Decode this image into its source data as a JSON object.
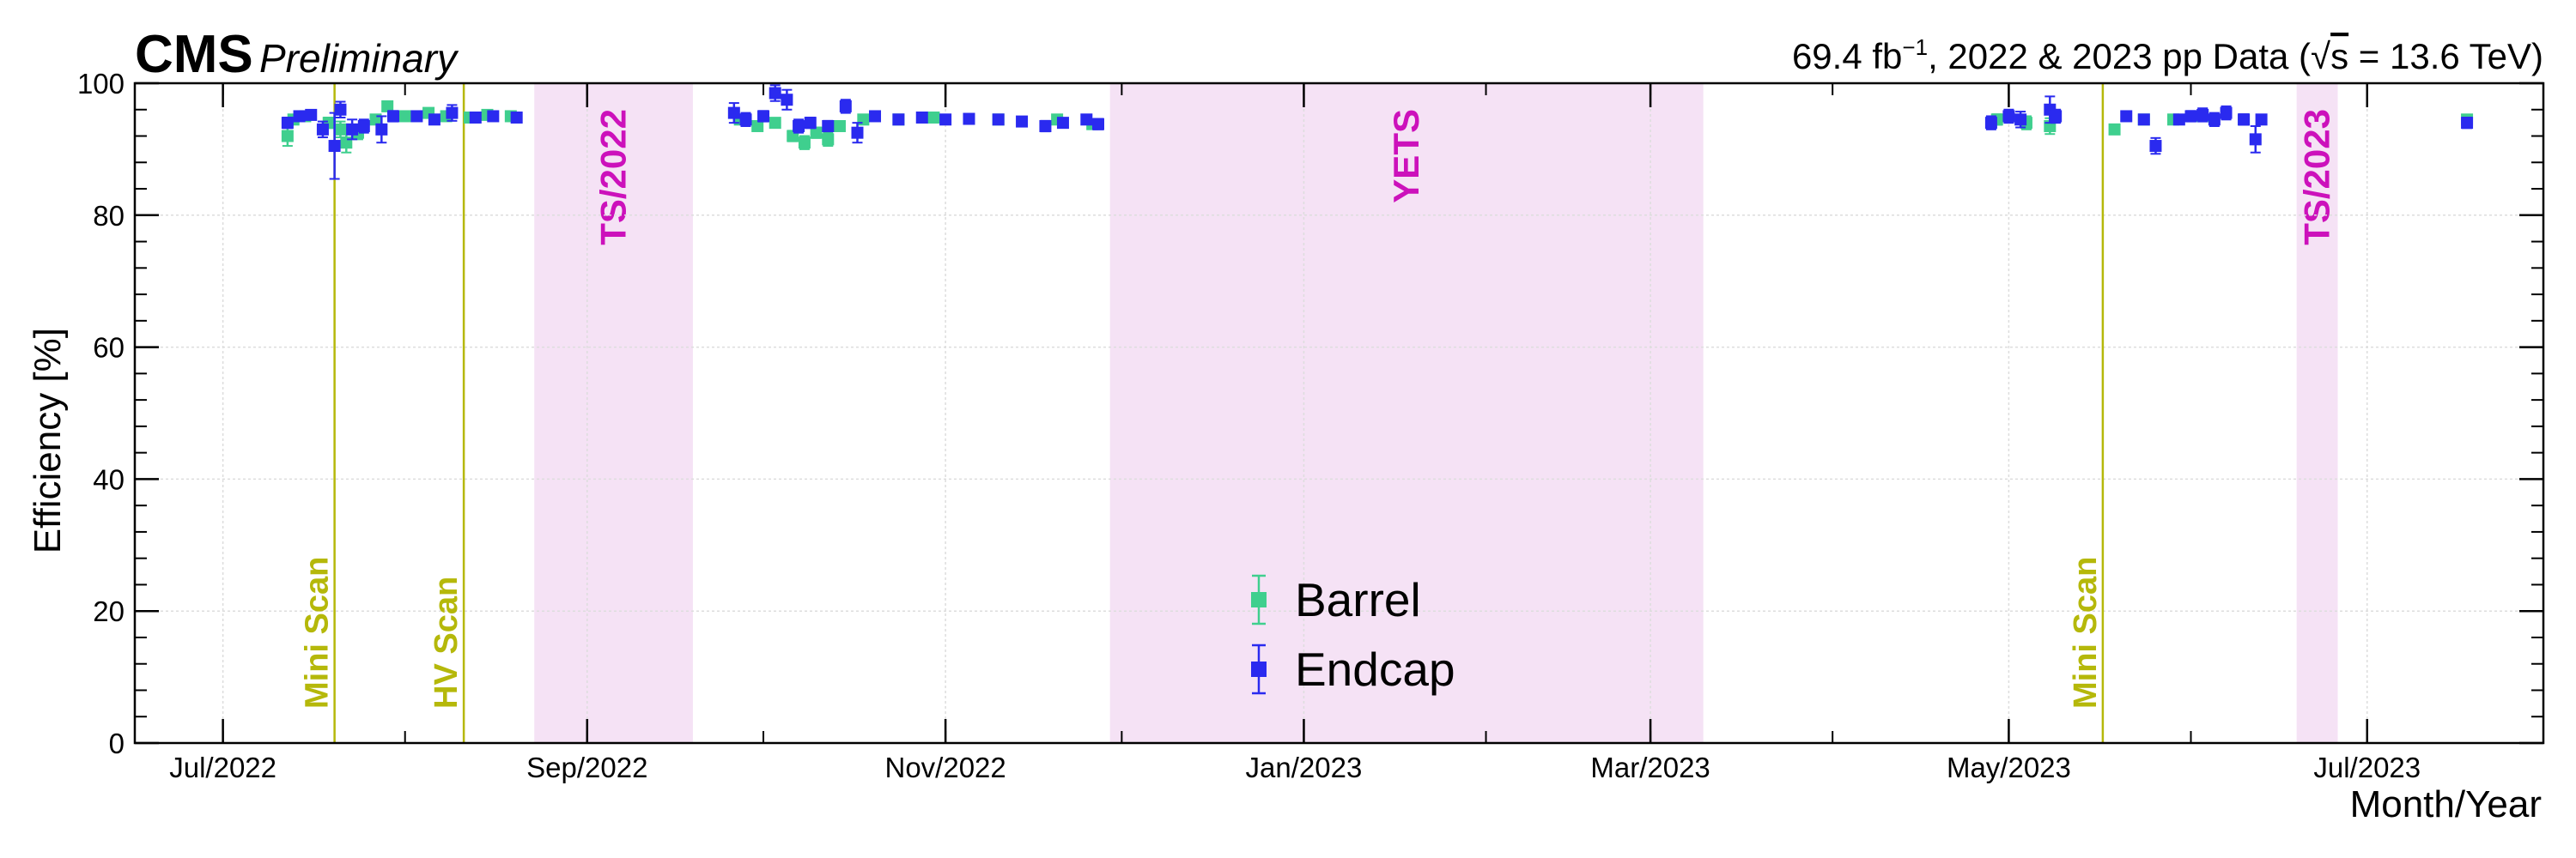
{
  "header": {
    "experiment": "CMS",
    "status": "Preliminary",
    "lumi_value": "69.4 fb",
    "lumi_exp": "−1",
    "lumi_rest": ", 2022 & 2023 pp Data (",
    "sqrt": "√",
    "energy_var": "s",
    "energy_value": " = 13.6 TeV)"
  },
  "chart_data": {
    "type": "scatter",
    "xlabel": "Month/Year",
    "ylabel": "Efficiency [%]",
    "xlim": [
      "2022-06-16",
      "2023-07-31"
    ],
    "ylim": [
      0,
      100
    ],
    "yticks": [
      0,
      20,
      40,
      60,
      80,
      100
    ],
    "xticks": [
      {
        "date": "2022-07-01",
        "label": "Jul/2022"
      },
      {
        "date": "2022-09-01",
        "label": "Sep/2022"
      },
      {
        "date": "2022-11-01",
        "label": "Nov/2022"
      },
      {
        "date": "2023-01-01",
        "label": "Jan/2023"
      },
      {
        "date": "2023-03-01",
        "label": "Mar/2023"
      },
      {
        "date": "2023-05-01",
        "label": "May/2023"
      },
      {
        "date": "2023-07-01",
        "label": "Jul/2023"
      }
    ],
    "grid": true,
    "legend_position": "bottom-center",
    "colors": {
      "barrel": "#3fcf8e",
      "endcap": "#2a2aef",
      "band": "#f5e2f5",
      "band_text": "#cc11bb",
      "scan": "#b5b80a"
    },
    "shaded_bands": [
      {
        "label": "TS/2022",
        "start": "2022-08-23",
        "end": "2022-09-19"
      },
      {
        "label": "YETS",
        "start": "2022-11-29",
        "end": "2023-03-10"
      },
      {
        "label": "TS/2023",
        "start": "2023-06-19",
        "end": "2023-06-26"
      }
    ],
    "scan_lines": [
      {
        "label": "Mini Scan",
        "date": "2022-07-20"
      },
      {
        "label": "HV Scan",
        "date": "2022-08-11"
      },
      {
        "label": "Mini Scan",
        "date": "2023-05-17"
      }
    ],
    "series": [
      {
        "name": "Barrel",
        "points": [
          {
            "x": "2022-07-12",
            "y": 92.0,
            "err": 1.5
          },
          {
            "x": "2022-07-13",
            "y": 94.5,
            "err": 0.5
          },
          {
            "x": "2022-07-15",
            "y": 95.0,
            "err": 0.5
          },
          {
            "x": "2022-07-19",
            "y": 94.0,
            "err": 0.8
          },
          {
            "x": "2022-07-21",
            "y": 93.0,
            "err": 1.2
          },
          {
            "x": "2022-07-22",
            "y": 91.0,
            "err": 1.5
          },
          {
            "x": "2022-07-24",
            "y": 92.5,
            "err": 1.0
          },
          {
            "x": "2022-07-27",
            "y": 94.5,
            "err": 0.6
          },
          {
            "x": "2022-07-29",
            "y": 96.5,
            "err": 0.6
          },
          {
            "x": "2022-08-01",
            "y": 95.0,
            "err": 0.5
          },
          {
            "x": "2022-08-05",
            "y": 95.5,
            "err": 0.5
          },
          {
            "x": "2022-08-08",
            "y": 95.0,
            "err": 0.5
          },
          {
            "x": "2022-08-12",
            "y": 94.8,
            "err": 0.5
          },
          {
            "x": "2022-08-15",
            "y": 95.2,
            "err": 0.5
          },
          {
            "x": "2022-08-19",
            "y": 95.0,
            "err": 0.5
          },
          {
            "x": "2022-09-27",
            "y": 94.5,
            "err": 0.6
          },
          {
            "x": "2022-09-30",
            "y": 93.5,
            "err": 0.6
          },
          {
            "x": "2022-10-03",
            "y": 94.0,
            "err": 0.5
          },
          {
            "x": "2022-10-06",
            "y": 92.0,
            "err": 0.8
          },
          {
            "x": "2022-10-08",
            "y": 91.0,
            "err": 1.0
          },
          {
            "x": "2022-10-10",
            "y": 92.5,
            "err": 0.8
          },
          {
            "x": "2022-10-12",
            "y": 91.5,
            "err": 1.0
          },
          {
            "x": "2022-10-14",
            "y": 93.5,
            "err": 0.6
          },
          {
            "x": "2022-10-18",
            "y": 94.5,
            "err": 0.5
          },
          {
            "x": "2022-10-24",
            "y": 94.5,
            "err": 0.5
          },
          {
            "x": "2022-10-30",
            "y": 94.8,
            "err": 0.4
          },
          {
            "x": "2022-11-10",
            "y": 94.5,
            "err": 0.5
          },
          {
            "x": "2022-11-20",
            "y": 94.5,
            "err": 0.5
          },
          {
            "x": "2022-11-26",
            "y": 93.8,
            "err": 0.6
          },
          {
            "x": "2023-04-29",
            "y": 94.5,
            "err": 0.8
          },
          {
            "x": "2023-05-04",
            "y": 94.0,
            "err": 1.0
          },
          {
            "x": "2023-05-08",
            "y": 93.5,
            "err": 1.2
          },
          {
            "x": "2023-05-19",
            "y": 93.0,
            "err": 0.6
          },
          {
            "x": "2023-05-24",
            "y": 94.5,
            "err": 0.5
          },
          {
            "x": "2023-05-29",
            "y": 94.5,
            "err": 0.6
          },
          {
            "x": "2023-06-03",
            "y": 95.0,
            "err": 0.5
          },
          {
            "x": "2023-06-10",
            "y": 94.5,
            "err": 0.5
          },
          {
            "x": "2023-07-18",
            "y": 94.5,
            "err": 0.5
          }
        ]
      },
      {
        "name": "Endcap",
        "points": [
          {
            "x": "2022-07-12",
            "y": 94.0,
            "err": 0.8
          },
          {
            "x": "2022-07-14",
            "y": 95.0,
            "err": 0.5
          },
          {
            "x": "2022-07-16",
            "y": 95.2,
            "err": 0.5
          },
          {
            "x": "2022-07-18",
            "y": 93.0,
            "err": 1.2
          },
          {
            "x": "2022-07-20",
            "y": 90.5,
            "err": 5.0
          },
          {
            "x": "2022-07-21",
            "y": 96.0,
            "err": 1.2
          },
          {
            "x": "2022-07-23",
            "y": 93.0,
            "err": 1.5
          },
          {
            "x": "2022-07-25",
            "y": 93.5,
            "err": 1.0
          },
          {
            "x": "2022-07-28",
            "y": 93.0,
            "err": 2.0
          },
          {
            "x": "2022-07-30",
            "y": 95.0,
            "err": 0.8
          },
          {
            "x": "2022-08-03",
            "y": 95.0,
            "err": 0.5
          },
          {
            "x": "2022-08-06",
            "y": 94.5,
            "err": 0.5
          },
          {
            "x": "2022-08-09",
            "y": 95.5,
            "err": 1.2
          },
          {
            "x": "2022-08-13",
            "y": 94.8,
            "err": 0.5
          },
          {
            "x": "2022-08-16",
            "y": 95.0,
            "err": 0.5
          },
          {
            "x": "2022-08-20",
            "y": 94.8,
            "err": 0.5
          },
          {
            "x": "2022-09-26",
            "y": 95.5,
            "err": 1.5
          },
          {
            "x": "2022-09-28",
            "y": 94.5,
            "err": 1.0
          },
          {
            "x": "2022-10-01",
            "y": 95.0,
            "err": 0.8
          },
          {
            "x": "2022-10-03",
            "y": 98.5,
            "err": 1.2
          },
          {
            "x": "2022-10-05",
            "y": 97.5,
            "err": 1.5
          },
          {
            "x": "2022-10-07",
            "y": 93.5,
            "err": 1.0
          },
          {
            "x": "2022-10-09",
            "y": 94.0,
            "err": 0.8
          },
          {
            "x": "2022-10-12",
            "y": 93.5,
            "err": 0.8
          },
          {
            "x": "2022-10-15",
            "y": 96.5,
            "err": 1.0
          },
          {
            "x": "2022-10-17",
            "y": 92.5,
            "err": 1.5
          },
          {
            "x": "2022-10-20",
            "y": 95.0,
            "err": 0.6
          },
          {
            "x": "2022-10-24",
            "y": 94.5,
            "err": 0.5
          },
          {
            "x": "2022-10-28",
            "y": 94.8,
            "err": 0.5
          },
          {
            "x": "2022-11-01",
            "y": 94.5,
            "err": 0.5
          },
          {
            "x": "2022-11-05",
            "y": 94.6,
            "err": 0.5
          },
          {
            "x": "2022-11-10",
            "y": 94.5,
            "err": 0.5
          },
          {
            "x": "2022-11-14",
            "y": 94.2,
            "err": 0.5
          },
          {
            "x": "2022-11-18",
            "y": 93.5,
            "err": 0.8
          },
          {
            "x": "2022-11-21",
            "y": 94.0,
            "err": 0.6
          },
          {
            "x": "2022-11-25",
            "y": 94.5,
            "err": 0.5
          },
          {
            "x": "2022-11-27",
            "y": 93.8,
            "err": 0.8
          },
          {
            "x": "2023-04-28",
            "y": 94.0,
            "err": 1.0
          },
          {
            "x": "2023-05-01",
            "y": 95.0,
            "err": 1.0
          },
          {
            "x": "2023-05-03",
            "y": 94.5,
            "err": 1.2
          },
          {
            "x": "2023-05-08",
            "y": 96.0,
            "err": 2.0
          },
          {
            "x": "2023-05-09",
            "y": 95.0,
            "err": 1.0
          },
          {
            "x": "2023-05-21",
            "y": 95.0,
            "err": 0.5
          },
          {
            "x": "2023-05-24",
            "y": 94.5,
            "err": 0.5
          },
          {
            "x": "2023-05-26",
            "y": 90.5,
            "err": 1.2
          },
          {
            "x": "2023-05-30",
            "y": 94.5,
            "err": 0.6
          },
          {
            "x": "2023-06-01",
            "y": 95.0,
            "err": 0.8
          },
          {
            "x": "2023-06-03",
            "y": 95.2,
            "err": 1.0
          },
          {
            "x": "2023-06-05",
            "y": 94.5,
            "err": 1.0
          },
          {
            "x": "2023-06-07",
            "y": 95.5,
            "err": 1.0
          },
          {
            "x": "2023-06-10",
            "y": 94.5,
            "err": 0.8
          },
          {
            "x": "2023-06-12",
            "y": 91.5,
            "err": 2.0
          },
          {
            "x": "2023-06-13",
            "y": 94.5,
            "err": 0.6
          },
          {
            "x": "2023-07-18",
            "y": 94.0,
            "err": 0.8
          }
        ]
      }
    ]
  }
}
